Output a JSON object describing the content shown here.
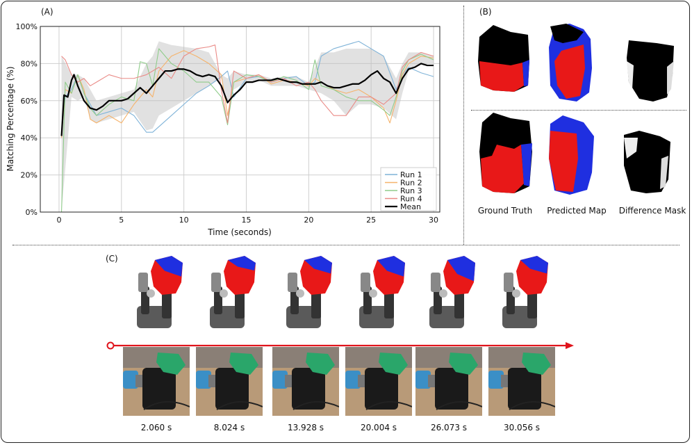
{
  "panels": {
    "a_label": "(A)",
    "b_label": "(B)",
    "c_label": "(C)"
  },
  "chart_data": {
    "type": "line",
    "title": "",
    "xlabel": "Time (seconds)",
    "ylabel": "Matching Percentage (%)",
    "xlim": [
      -1.5,
      30.5
    ],
    "ylim": [
      0,
      100
    ],
    "xticks": [
      0,
      5,
      10,
      15,
      20,
      25,
      30
    ],
    "yticks": [
      0,
      20,
      40,
      60,
      80,
      100
    ],
    "ytick_labels": [
      "0%",
      "20%",
      "40%",
      "60%",
      "80%",
      "100%"
    ],
    "grid": true,
    "legend_position": "bottom-right",
    "series": [
      {
        "name": "Run 1",
        "color": "#7fb3d8",
        "x": [
          0.2,
          0.5,
          1,
          1.5,
          2,
          2.5,
          3,
          4,
          5,
          6,
          7,
          7.5,
          8,
          9,
          10,
          11,
          12,
          13,
          13.5,
          14,
          15,
          16,
          17,
          18,
          19,
          20,
          20.5,
          21,
          22,
          23,
          24,
          25,
          26,
          27,
          27.5,
          28,
          29,
          30
        ],
        "y": [
          42,
          62,
          66,
          74,
          64,
          58,
          52,
          54,
          56,
          52,
          43,
          43,
          46,
          52,
          58,
          64,
          68,
          73,
          76,
          62,
          72,
          73,
          70,
          72,
          73,
          68,
          70,
          84,
          88,
          90,
          92,
          88,
          84,
          66,
          74,
          78,
          75,
          73
        ]
      },
      {
        "name": "Run 2",
        "color": "#f5b36b",
        "x": [
          0.2,
          0.5,
          1,
          1.5,
          2,
          2.5,
          3,
          4,
          5,
          6,
          7,
          7.5,
          8,
          9,
          10,
          11,
          12,
          13,
          13.5,
          14,
          15,
          16,
          17,
          18,
          19,
          20,
          20.5,
          21,
          22,
          23,
          24,
          25,
          26,
          26.5,
          27,
          27.5,
          28,
          29,
          30
        ],
        "y": [
          40,
          66,
          64,
          74,
          66,
          50,
          48,
          52,
          48,
          58,
          66,
          62,
          76,
          84,
          87,
          84,
          80,
          74,
          52,
          70,
          72,
          74,
          69,
          71,
          70,
          68,
          72,
          70,
          66,
          64,
          66,
          62,
          56,
          48,
          60,
          74,
          80,
          84,
          83
        ]
      },
      {
        "name": "Run 3",
        "color": "#8fcc8a",
        "x": [
          0.2,
          0.5,
          1,
          1.5,
          2,
          2.5,
          3,
          4,
          5,
          6,
          6.5,
          7,
          7.5,
          8,
          9,
          10,
          11,
          12,
          13,
          13.5,
          14,
          15,
          16,
          17,
          18,
          19,
          20,
          20.5,
          21,
          22,
          23,
          24,
          25,
          26,
          26.5,
          27,
          27.5,
          28,
          29,
          30
        ],
        "y": [
          0,
          70,
          64,
          74,
          64,
          56,
          52,
          58,
          62,
          60,
          81,
          80,
          68,
          88,
          80,
          76,
          70,
          70,
          62,
          47,
          70,
          74,
          73,
          70,
          73,
          71,
          66,
          82,
          68,
          66,
          62,
          60,
          60,
          55,
          52,
          62,
          76,
          82,
          85,
          82
        ]
      },
      {
        "name": "Run 4",
        "color": "#ea8a86",
        "x": [
          0.2,
          0.5,
          1,
          1.5,
          2,
          2.5,
          3,
          4,
          5,
          6,
          7,
          8,
          9,
          10,
          11,
          12,
          12.5,
          13,
          13.5,
          14,
          15,
          16,
          17,
          18,
          19,
          20,
          20.5,
          21,
          22,
          23,
          24,
          25,
          26,
          27,
          27.5,
          28,
          29,
          30
        ],
        "y": [
          84,
          82,
          74,
          70,
          72,
          68,
          70,
          74,
          72,
          72,
          74,
          78,
          72,
          84,
          88,
          89,
          90,
          66,
          48,
          76,
          72,
          74,
          70,
          72,
          68,
          70,
          66,
          60,
          52,
          52,
          62,
          62,
          58,
          64,
          78,
          82,
          86,
          84
        ]
      },
      {
        "name": "Mean",
        "color": "#000000",
        "x": [
          0.2,
          0.4,
          0.7,
          1,
          1.2,
          1.5,
          2,
          2.5,
          3,
          3.5,
          4,
          4.5,
          5,
          5.5,
          6,
          6.5,
          7,
          7.5,
          8,
          8.5,
          9,
          9.5,
          10,
          10.5,
          11,
          11.5,
          12,
          12.5,
          13,
          13.5,
          14,
          14.5,
          15,
          15.5,
          16,
          16.5,
          17,
          17.5,
          18,
          18.5,
          19,
          19.5,
          20,
          20.5,
          21,
          21.5,
          22,
          22.5,
          23,
          23.5,
          24,
          24.5,
          25,
          25.5,
          26,
          26.5,
          27,
          27.5,
          28,
          28.5,
          29,
          29.5,
          30
        ],
        "y": [
          41,
          63,
          62,
          71,
          74,
          68,
          60,
          56,
          55,
          57,
          60,
          60,
          60,
          61,
          64,
          67,
          64,
          68,
          72,
          76,
          76,
          77,
          77,
          76,
          74,
          73,
          74,
          73,
          68,
          59,
          63,
          66,
          70,
          70,
          71,
          71,
          71,
          72,
          71,
          70,
          70,
          69,
          69,
          69,
          70,
          68,
          67,
          67,
          68,
          69,
          69,
          71,
          74,
          76,
          72,
          70,
          64,
          72,
          77,
          78,
          80,
          79,
          79
        ]
      }
    ],
    "band": {
      "x": [
        0.2,
        1,
        1.5,
        2,
        2.5,
        3,
        4,
        5,
        6,
        7,
        7.5,
        8,
        9,
        10,
        11,
        12,
        13,
        13.5,
        14,
        15,
        16,
        17,
        18,
        19,
        20,
        21,
        22,
        23,
        24,
        25,
        26,
        27,
        27.5,
        28,
        29,
        30
      ],
      "upper": [
        84,
        74,
        74,
        72,
        66,
        60,
        62,
        64,
        66,
        80,
        84,
        92,
        90,
        89,
        88,
        86,
        74,
        72,
        76,
        74,
        74,
        72,
        73,
        73,
        70,
        86,
        86,
        88,
        88,
        88,
        84,
        72,
        80,
        86,
        86,
        84
      ],
      "lower": [
        0,
        62,
        60,
        62,
        50,
        48,
        50,
        52,
        54,
        44,
        45,
        52,
        56,
        60,
        64,
        68,
        72,
        58,
        66,
        70,
        71,
        68,
        68,
        68,
        66,
        64,
        60,
        52,
        58,
        58,
        56,
        50,
        64,
        76,
        80,
        80
      ]
    }
  },
  "panel_b": {
    "ground_truth": "Ground Truth",
    "predicted_map": "Predicted Map",
    "difference_mask": "Difference Mask"
  },
  "panel_c": {
    "times": [
      "2.060 s",
      "8.024 s",
      "13.928 s",
      "20.004 s",
      "26.073 s",
      "30.056 s"
    ],
    "timeline_color": "#e0141c"
  }
}
